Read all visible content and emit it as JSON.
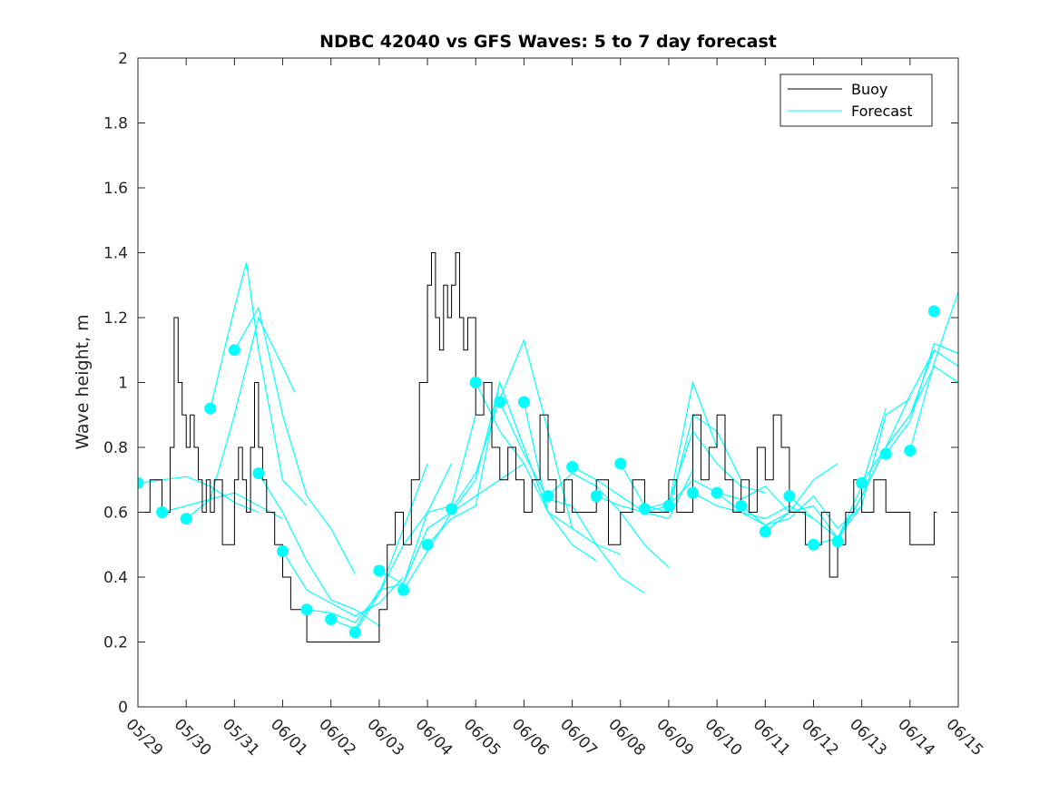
{
  "chart_data": {
    "type": "line",
    "title": "NDBC 42040 vs GFS Waves: 5 to 7 day forecast",
    "xlabel": "",
    "ylabel": "Wave height, m",
    "xlim": [
      "05/29",
      "06/15"
    ],
    "ylim": [
      0,
      2
    ],
    "x_tick_labels": [
      "05/29",
      "05/30",
      "05/31",
      "06/01",
      "06/02",
      "06/03",
      "06/04",
      "06/05",
      "06/06",
      "06/07",
      "06/08",
      "06/09",
      "06/10",
      "06/11",
      "06/12",
      "06/13",
      "06/14",
      "06/15"
    ],
    "y_tick_labels": [
      "0",
      "0.2",
      "0.4",
      "0.6",
      "0.8",
      "1",
      "1.2",
      "1.4",
      "1.6",
      "1.8",
      "2"
    ],
    "y_ticks": [
      0,
      0.2,
      0.4,
      0.6,
      0.8,
      1,
      1.2,
      1.4,
      1.6,
      1.8,
      2
    ],
    "grid": false,
    "legend_placement": "top-right",
    "colors": {
      "buoy": "#000000",
      "forecast": "#00ffff",
      "axis": "#262626"
    },
    "legend": [
      {
        "label": "Buoy",
        "color": "#000000"
      },
      {
        "label": "Forecast",
        "color": "#00ffff"
      }
    ],
    "buoy": {
      "name": "Buoy",
      "x": [
        "05/29 00:00",
        "05/29 06:00",
        "05/29 12:00",
        "05/29 16:00",
        "05/29 18:00",
        "05/29 20:00",
        "05/29 22:00",
        "05/30 00:00",
        "05/30 02:00",
        "05/30 04:00",
        "05/30 06:00",
        "05/30 08:00",
        "05/30 10:00",
        "05/30 12:00",
        "05/30 14:00",
        "05/30 18:00",
        "05/31 00:00",
        "05/31 02:00",
        "05/31 04:00",
        "05/31 06:00",
        "05/31 08:00",
        "05/31 10:00",
        "05/31 12:00",
        "05/31 14:00",
        "05/31 16:00",
        "05/31 18:00",
        "05/31 20:00",
        "06/01 00:00",
        "06/01 04:00",
        "06/01 08:00",
        "06/01 12:00",
        "06/01 16:00",
        "06/01 20:00",
        "06/02 00:00",
        "06/02 06:00",
        "06/02 12:00",
        "06/02 18:00",
        "06/03 00:00",
        "06/03 04:00",
        "06/03 08:00",
        "06/03 12:00",
        "06/03 16:00",
        "06/03 20:00",
        "06/04 00:00",
        "06/04 02:00",
        "06/04 04:00",
        "06/04 06:00",
        "06/04 08:00",
        "06/04 10:00",
        "06/04 12:00",
        "06/04 14:00",
        "06/04 16:00",
        "06/04 18:00",
        "06/04 20:00",
        "06/05 00:00",
        "06/05 04:00",
        "06/05 08:00",
        "06/05 12:00",
        "06/05 16:00",
        "06/05 20:00",
        "06/06 00:00",
        "06/06 04:00",
        "06/06 08:00",
        "06/06 12:00",
        "06/06 16:00",
        "06/06 20:00",
        "06/07 00:00",
        "06/07 06:00",
        "06/07 12:00",
        "06/07 18:00",
        "06/08 00:00",
        "06/08 06:00",
        "06/08 12:00",
        "06/08 18:00",
        "06/09 00:00",
        "06/09 04:00",
        "06/09 08:00",
        "06/09 12:00",
        "06/09 16:00",
        "06/09 20:00",
        "06/10 00:00",
        "06/10 04:00",
        "06/10 08:00",
        "06/10 12:00",
        "06/10 16:00",
        "06/10 20:00",
        "06/11 00:00",
        "06/11 04:00",
        "06/11 08:00",
        "06/11 12:00",
        "06/11 16:00",
        "06/11 20:00",
        "06/12 00:00",
        "06/12 04:00",
        "06/12 08:00",
        "06/12 12:00",
        "06/12 16:00",
        "06/12 20:00",
        "06/13 00:00",
        "06/13 06:00",
        "06/13 12:00",
        "06/13 18:00",
        "06/14 00:00",
        "06/14 06:00",
        "06/14 12:00"
      ],
      "values": [
        0.6,
        0.7,
        0.6,
        0.8,
        1.2,
        1.0,
        0.9,
        0.8,
        0.9,
        0.8,
        0.7,
        0.6,
        0.7,
        0.6,
        0.7,
        0.5,
        0.7,
        0.8,
        0.7,
        0.6,
        0.8,
        1.0,
        0.8,
        0.7,
        0.6,
        0.6,
        0.5,
        0.4,
        0.3,
        0.3,
        0.2,
        0.2,
        0.2,
        0.2,
        0.2,
        0.2,
        0.2,
        0.3,
        0.5,
        0.6,
        0.5,
        0.7,
        1.0,
        1.3,
        1.4,
        1.2,
        1.1,
        1.3,
        1.2,
        1.3,
        1.4,
        1.2,
        1.1,
        1.2,
        0.9,
        1.0,
        0.8,
        0.7,
        0.8,
        0.7,
        0.6,
        0.7,
        0.9,
        0.7,
        0.6,
        0.7,
        0.6,
        0.6,
        0.7,
        0.5,
        0.6,
        0.7,
        0.6,
        0.6,
        0.7,
        0.6,
        0.6,
        0.9,
        0.7,
        0.8,
        0.9,
        0.7,
        0.6,
        0.7,
        0.6,
        0.8,
        0.7,
        0.9,
        0.8,
        0.6,
        0.6,
        0.5,
        0.5,
        0.6,
        0.4,
        0.5,
        0.6,
        0.7,
        0.6,
        0.7,
        0.6,
        0.6,
        0.5,
        0.5,
        0.6
      ]
    },
    "forecast_runs": [
      {
        "x": [
          "05/29 00:00",
          "05/29 12:00",
          "05/30 00:00",
          "05/30 12:00",
          "05/31 00:00",
          "05/31 12:00"
        ],
        "values": [
          0.69,
          0.7,
          0.71,
          0.68,
          0.63,
          0.6
        ]
      },
      {
        "x": [
          "05/29 12:00",
          "05/30 00:00",
          "05/30 12:00",
          "05/31 00:00",
          "05/31 12:00",
          "06/01 00:00"
        ],
        "values": [
          0.6,
          0.62,
          0.64,
          0.66,
          0.62,
          0.58
        ]
      },
      {
        "x": [
          "05/30 00:00",
          "05/30 12:00",
          "05/31 00:00",
          "05/31 12:00",
          "06/01 00:00",
          "06/01 06:00"
        ],
        "values": [
          0.58,
          0.64,
          0.9,
          1.2,
          1.05,
          0.97
        ]
      },
      {
        "x": [
          "05/30 12:00",
          "05/31 00:00",
          "05/31 06:00",
          "05/31 12:00",
          "06/01 00:00",
          "06/01 12:00"
        ],
        "values": [
          0.92,
          1.23,
          1.37,
          1.1,
          0.7,
          0.62
        ]
      },
      {
        "x": [
          "05/31 00:00",
          "05/31 12:00",
          "06/01 00:00",
          "06/01 12:00",
          "06/02 00:00",
          "06/02 12:00"
        ],
        "values": [
          1.1,
          1.23,
          0.9,
          0.65,
          0.55,
          0.41
        ]
      },
      {
        "x": [
          "05/31 12:00",
          "06/01 00:00",
          "06/01 12:00",
          "06/02 00:00",
          "06/02 12:00",
          "06/03 00:00"
        ],
        "values": [
          0.72,
          0.6,
          0.45,
          0.33,
          0.3,
          0.25
        ]
      },
      {
        "x": [
          "06/01 00:00",
          "06/01 12:00",
          "06/02 00:00",
          "06/02 12:00",
          "06/03 00:00",
          "06/03 12:00"
        ],
        "values": [
          0.48,
          0.36,
          0.32,
          0.28,
          0.32,
          0.4
        ]
      },
      {
        "x": [
          "06/01 12:00",
          "06/02 00:00",
          "06/02 12:00",
          "06/03 00:00",
          "06/03 12:00",
          "06/04 00:00"
        ],
        "values": [
          0.3,
          0.29,
          0.26,
          0.35,
          0.55,
          0.75
        ]
      },
      {
        "x": [
          "06/02 00:00",
          "06/02 12:00",
          "06/03 00:00",
          "06/03 12:00",
          "06/04 00:00",
          "06/04 12:00"
        ],
        "values": [
          0.27,
          0.24,
          0.36,
          0.38,
          0.6,
          0.75
        ]
      },
      {
        "x": [
          "06/02 12:00",
          "06/03 00:00",
          "06/03 12:00",
          "06/04 00:00",
          "06/04 12:00",
          "06/05 00:00"
        ],
        "values": [
          0.23,
          0.35,
          0.5,
          0.6,
          0.62,
          0.9
        ]
      },
      {
        "x": [
          "06/03 00:00",
          "06/03 12:00",
          "06/04 00:00",
          "06/04 12:00",
          "06/05 00:00",
          "06/05 12:00"
        ],
        "values": [
          0.42,
          0.38,
          0.55,
          0.6,
          0.7,
          1.0
        ]
      },
      {
        "x": [
          "06/03 12:00",
          "06/04 00:00",
          "06/04 12:00",
          "06/05 00:00",
          "06/05 12:00",
          "06/06 00:00"
        ],
        "values": [
          0.36,
          0.48,
          0.6,
          0.65,
          0.7,
          0.75
        ]
      },
      {
        "x": [
          "06/04 00:00",
          "06/04 12:00",
          "06/05 00:00",
          "06/05 12:00",
          "06/06 00:00",
          "06/06 12:00"
        ],
        "values": [
          0.5,
          0.58,
          0.62,
          1.0,
          0.8,
          0.6
        ]
      },
      {
        "x": [
          "06/04 12:00",
          "06/05 00:00",
          "06/05 12:00",
          "06/06 00:00",
          "06/06 12:00",
          "06/07 00:00"
        ],
        "values": [
          0.61,
          0.72,
          0.95,
          1.13,
          0.85,
          0.55
        ]
      },
      {
        "x": [
          "06/05 00:00",
          "06/05 12:00",
          "06/06 00:00",
          "06/06 12:00",
          "06/07 00:00",
          "06/07 12:00"
        ],
        "values": [
          1.0,
          0.85,
          0.75,
          0.6,
          0.5,
          0.45
        ]
      },
      {
        "x": [
          "06/05 12:00",
          "06/06 00:00",
          "06/06 12:00",
          "06/07 00:00",
          "06/07 12:00",
          "06/08 00:00"
        ],
        "values": [
          0.94,
          0.78,
          0.64,
          0.62,
          0.5,
          0.47
        ]
      },
      {
        "x": [
          "06/06 00:00",
          "06/06 12:00",
          "06/07 00:00",
          "06/07 12:00",
          "06/08 00:00",
          "06/08 12:00"
        ],
        "values": [
          0.94,
          0.6,
          0.55,
          0.5,
          0.4,
          0.35
        ]
      },
      {
        "x": [
          "06/06 12:00",
          "06/07 00:00",
          "06/07 12:00",
          "06/08 00:00",
          "06/08 12:00",
          "06/09 00:00"
        ],
        "values": [
          0.65,
          0.72,
          0.68,
          0.6,
          0.5,
          0.43
        ]
      },
      {
        "x": [
          "06/07 00:00",
          "06/07 12:00",
          "06/08 00:00",
          "06/08 12:00",
          "06/09 00:00",
          "06/09 12:00"
        ],
        "values": [
          0.74,
          0.7,
          0.65,
          0.6,
          0.58,
          0.73
        ]
      },
      {
        "x": [
          "06/07 12:00",
          "06/08 00:00",
          "06/08 12:00",
          "06/09 00:00",
          "06/09 12:00",
          "06/10 00:00"
        ],
        "values": [
          0.65,
          0.62,
          0.6,
          0.62,
          1.0,
          0.8
        ]
      },
      {
        "x": [
          "06/08 00:00",
          "06/08 12:00",
          "06/09 00:00",
          "06/09 12:00",
          "06/10 00:00",
          "06/10 12:00"
        ],
        "values": [
          0.75,
          0.62,
          0.6,
          0.9,
          0.85,
          0.7
        ]
      },
      {
        "x": [
          "06/08 12:00",
          "06/09 00:00",
          "06/09 12:00",
          "06/10 00:00",
          "06/10 12:00",
          "06/11 00:00"
        ],
        "values": [
          0.61,
          0.63,
          0.85,
          0.75,
          0.68,
          0.66
        ]
      },
      {
        "x": [
          "06/09 00:00",
          "06/09 12:00",
          "06/10 00:00",
          "06/10 12:00",
          "06/11 00:00",
          "06/11 12:00"
        ],
        "values": [
          0.62,
          0.7,
          0.66,
          0.64,
          0.68,
          0.6
        ]
      },
      {
        "x": [
          "06/09 12:00",
          "06/10 00:00",
          "06/10 12:00",
          "06/11 00:00",
          "06/11 12:00",
          "06/12 00:00"
        ],
        "values": [
          0.66,
          0.62,
          0.6,
          0.58,
          0.62,
          0.58
        ]
      },
      {
        "x": [
          "06/10 00:00",
          "06/10 12:00",
          "06/11 00:00",
          "06/11 12:00",
          "06/12 00:00",
          "06/12 12:00"
        ],
        "values": [
          0.66,
          0.6,
          0.56,
          0.6,
          0.7,
          0.75
        ]
      },
      {
        "x": [
          "06/10 12:00",
          "06/11 00:00",
          "06/11 12:00",
          "06/12 00:00",
          "06/12 12:00",
          "06/13 00:00"
        ],
        "values": [
          0.62,
          0.56,
          0.58,
          0.65,
          0.55,
          0.62
        ]
      },
      {
        "x": [
          "06/11 00:00",
          "06/11 12:00",
          "06/12 00:00",
          "06/12 12:00",
          "06/13 00:00",
          "06/13 12:00"
        ],
        "values": [
          0.54,
          0.6,
          0.62,
          0.52,
          0.68,
          0.92
        ]
      },
      {
        "x": [
          "06/11 12:00",
          "06/12 00:00",
          "06/12 12:00",
          "06/13 00:00",
          "06/13 12:00",
          "06/14 00:00"
        ],
        "values": [
          0.65,
          0.58,
          0.52,
          0.62,
          0.9,
          0.95
        ]
      },
      {
        "x": [
          "06/12 00:00",
          "06/12 12:00",
          "06/13 00:00",
          "06/13 12:00",
          "06/14 00:00",
          "06/14 12:00"
        ],
        "values": [
          0.5,
          0.52,
          0.65,
          0.8,
          0.96,
          1.1
        ]
      },
      {
        "x": [
          "06/12 12:00",
          "06/13 00:00",
          "06/13 12:00",
          "06/14 00:00",
          "06/14 12:00",
          "06/15 00:00"
        ],
        "values": [
          0.51,
          0.65,
          0.8,
          0.9,
          1.1,
          1.05
        ]
      },
      {
        "x": [
          "06/13 00:00",
          "06/13 12:00",
          "06/14 00:00",
          "06/14 12:00",
          "06/15 00:00"
        ],
        "values": [
          0.69,
          0.8,
          0.9,
          1.05,
          1.0
        ]
      },
      {
        "x": [
          "06/13 12:00",
          "06/14 00:00",
          "06/14 12:00",
          "06/15 00:00"
        ],
        "values": [
          0.78,
          0.88,
          1.12,
          1.09
        ]
      },
      {
        "x": [
          "06/14 00:00",
          "06/14 12:00",
          "06/15 00:00"
        ],
        "values": [
          0.79,
          1.06,
          1.28
        ]
      }
    ],
    "forecast_points": {
      "name": "Forecast",
      "x": [
        "05/29 00:00",
        "05/29 12:00",
        "05/30 00:00",
        "05/30 12:00",
        "05/31 00:00",
        "05/31 12:00",
        "06/01 00:00",
        "06/01 12:00",
        "06/02 00:00",
        "06/02 12:00",
        "06/03 00:00",
        "06/03 12:00",
        "06/04 00:00",
        "06/04 12:00",
        "06/05 00:00",
        "06/05 12:00",
        "06/06 00:00",
        "06/06 12:00",
        "06/07 00:00",
        "06/07 12:00",
        "06/08 00:00",
        "06/08 12:00",
        "06/09 00:00",
        "06/09 12:00",
        "06/10 00:00",
        "06/10 12:00",
        "06/11 00:00",
        "06/11 12:00",
        "06/12 00:00",
        "06/12 12:00",
        "06/13 00:00",
        "06/13 12:00",
        "06/14 00:00",
        "06/14 12:00"
      ],
      "values": [
        0.69,
        0.6,
        0.58,
        0.92,
        1.1,
        0.72,
        0.48,
        0.3,
        0.27,
        0.23,
        0.42,
        0.36,
        0.5,
        0.61,
        1.0,
        0.94,
        0.94,
        0.65,
        0.74,
        0.65,
        0.75,
        0.61,
        0.62,
        0.66,
        0.66,
        0.62,
        0.54,
        0.65,
        0.5,
        0.51,
        0.69,
        0.78,
        0.79,
        1.22
      ]
    }
  }
}
